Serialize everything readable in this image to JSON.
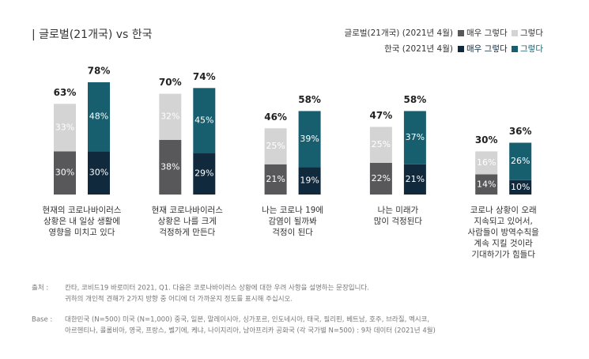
{
  "chart_data": {
    "type": "grouped-stacked-bar",
    "title": "| 글로벌(21개국) vs 한국",
    "categories": [
      [
        "현재의 코로나바이러스",
        "상황은 내 일상 생활에",
        "영향을 미치고 있다"
      ],
      [
        "현재 코로나바이러스",
        "상황은 나를 크게",
        "걱정하게 만든다"
      ],
      [
        "나는 코로나 19에",
        "감염이 될까봐",
        "걱정이 된다"
      ],
      [
        "나는 미래가",
        "많이 걱정된다"
      ],
      [
        "코로나 상황이 오래",
        "지속되고 있어서,",
        "사람들이 방역수칙을",
        "계속 지킬 것이라",
        "기대하기가 힘들다"
      ]
    ],
    "groups": [
      {
        "name": "글로벌(21개국) (2021년 4월)",
        "series": [
          {
            "name": "매우 그렇다",
            "color": "#58585a",
            "values": [
              30,
              38,
              21,
              22,
              14
            ],
            "value_labels": [
              "30%",
              "38%",
              "21%",
              "22%",
              "14%"
            ]
          },
          {
            "name": "그렇다",
            "color": "#d4d4d4",
            "values": [
              33,
              32,
              25,
              25,
              16
            ],
            "value_labels": [
              "33%",
              "32%",
              "25%",
              "25%",
              "16%"
            ]
          }
        ],
        "totals": [
          63,
          70,
          46,
          47,
          30
        ],
        "total_labels": [
          "63%",
          "70%",
          "46%",
          "47%",
          "30%"
        ]
      },
      {
        "name": "한국 (2021년 4월)",
        "series": [
          {
            "name": "매우 그렇다",
            "color": "#10293d",
            "values": [
              30,
              29,
              19,
              21,
              10
            ],
            "value_labels": [
              "30%",
              "29%",
              "19%",
              "21%",
              "10%"
            ]
          },
          {
            "name": "그렇다",
            "color": "#175f6e",
            "values": [
              48,
              45,
              39,
              37,
              26
            ],
            "value_labels": [
              "48%",
              "45%",
              "39%",
              "37%",
              "26%"
            ]
          }
        ],
        "totals": [
          78,
          74,
          58,
          58,
          36
        ],
        "total_labels": [
          "78%",
          "74%",
          "58%",
          "58%",
          "36%"
        ]
      }
    ]
  },
  "notes": {
    "source_label": "출처 :",
    "source_lines": [
      "칸타, 코비드19 바로미터 2021, Q1. 다음은 코로나바이러스 상황에 대한 우려 사항을 설명하는 문장입니다.",
      "귀하의 개인적 견해가 2가지 방향 중 어디에 더 가까운지 정도를 표시해 주십시오."
    ],
    "base_label": "Base :",
    "base_lines": [
      "대한민국 (N=500) 미국 (N=1,000) 중국, 일본, 말레이시아, 싱가포르, 인도네시아, 태국, 필리핀, 베트남, 호주, 브라질, 멕시코,",
      "아르헨티나, 콜롬비아, 영국, 프랑스, 벨기에, 케냐, 나이지리아, 남아프리카 공화국 (각 국가별  N=500) : 9차 데이터 (2021년 4월)"
    ]
  }
}
